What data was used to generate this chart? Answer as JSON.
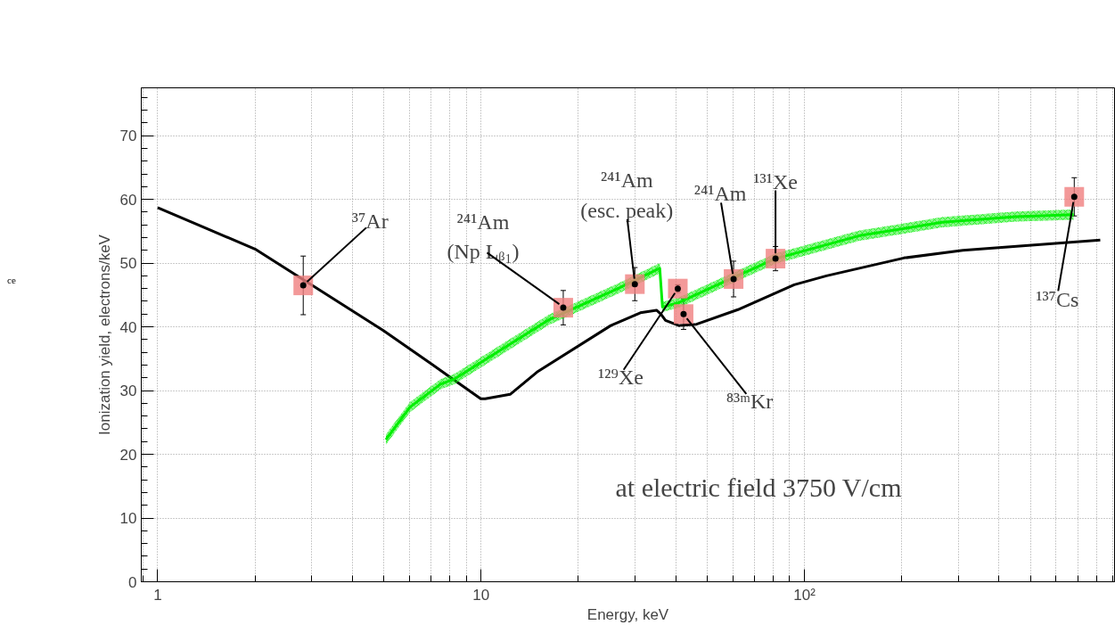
{
  "chart_data": {
    "type": "line",
    "xlabel": "Energy, keV",
    "ylabel": "Ionization yield, electrons/keV",
    "log": "x",
    "xlim": [
      0.89,
      910
    ],
    "ylim": [
      0,
      77.5
    ],
    "xticks": [
      1,
      10,
      {
        "value": 100,
        "label": "10²"
      }
    ],
    "yticks": [
      0,
      10,
      20,
      30,
      40,
      50,
      60,
      70
    ],
    "grid": true,
    "series": [
      {
        "color": "#000000",
        "x": [
          1,
          2.0,
          4.99,
          7.06,
          9.98,
          10.3,
          12.3,
          14.9,
          25.2,
          31.1,
          34.9,
          36.0,
          37.2,
          40.9,
          46.4,
          62.3,
          93,
          117,
          203,
          309,
          822
        ],
        "values": [
          58.7,
          52.2,
          39.4,
          34.1,
          28.7,
          28.7,
          29.4,
          32.9,
          40.2,
          42.2,
          42.6,
          42.0,
          41.0,
          40.2,
          40.4,
          42.7,
          46.6,
          48.0,
          50.8,
          52.0,
          53.6
        ]
      },
      {
        "color": "#00ee00",
        "x": [
          5.08,
          6.03,
          7.5,
          8.26,
          16.2,
          26.5,
          35.7,
          36.4,
          40.9,
          55,
          81.4,
          148,
          267,
          451,
          680
        ],
        "values": [
          22.3,
          27.4,
          31.0,
          31.8,
          41.1,
          46.0,
          49.2,
          43.1,
          43.8,
          46.8,
          50.7,
          54.3,
          56.4,
          57.3,
          57.6
        ],
        "lower": [
          21.5,
          26.6,
          30.2,
          31.0,
          40.3,
          45.2,
          48.4,
          42.3,
          43.0,
          46.0,
          49.9,
          53.5,
          55.6,
          56.5,
          56.8
        ],
        "upper": [
          23.1,
          28.2,
          31.8,
          32.6,
          41.9,
          46.8,
          50.0,
          43.9,
          44.6,
          47.6,
          51.5,
          55.1,
          57.2,
          58.1,
          58.4
        ]
      },
      {
        "type": "scatter",
        "color": "#f08080",
        "marker": "square",
        "x": [
          2.82,
          17.96,
          29.9,
          40.6,
          42.3,
          60.4,
          81.4,
          683
        ],
        "values": [
          46.5,
          43.0,
          46.7,
          46.0,
          42.0,
          47.5,
          50.7,
          60.4
        ],
        "errors": [
          4.6,
          2.7,
          2.6,
          0.6,
          2.4,
          2.8,
          1.9,
          3.0
        ]
      }
    ],
    "annotations": [
      {
        "text": "³⁷Ar",
        "x": 2.82,
        "y": 46.5
      },
      {
        "text": "²⁴¹Am\n(Np Lᵦ₁)",
        "x": 17.96,
        "y": 43.0
      },
      {
        "text": "²⁴¹Am\n(esc. peak)",
        "x": 29.9,
        "y": 46.7
      },
      {
        "text": "¹²⁹Xe",
        "x": 40.6,
        "y": 46.0
      },
      {
        "text": "⁸³ᵐKr",
        "x": 42.3,
        "y": 42.0
      },
      {
        "text": "²⁴¹Am",
        "x": 60.4,
        "y": 47.5
      },
      {
        "text": "¹³¹Xe",
        "x": 81.4,
        "y": 50.7
      },
      {
        "text": "¹³⁷Cs",
        "x": 683,
        "y": 60.4
      },
      "at electric field 3750 V/cm",
      "ce"
    ]
  }
}
